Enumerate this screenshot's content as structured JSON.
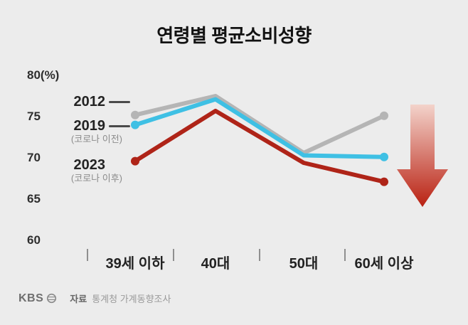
{
  "chart_data": {
    "type": "line",
    "title": "연령별 평균소비성향",
    "categories": [
      "39세 이하",
      "40대",
      "50대",
      "60세 이상"
    ],
    "yticks": [
      80,
      75,
      70,
      65,
      60
    ],
    "ylim": [
      60,
      80
    ],
    "y_unit": "(%)",
    "grid": false,
    "legend_position": "left-inline",
    "series": [
      {
        "name": "2012",
        "sub": "",
        "color": "#b5b5b5",
        "values": [
          75.2,
          77.5,
          70.6,
          75.1
        ]
      },
      {
        "name": "2019",
        "sub": "(코로나 이전)",
        "color": "#3fc0e4",
        "values": [
          74.0,
          77.1,
          70.3,
          70.1
        ]
      },
      {
        "name": "2023",
        "sub": "(코로나 이후)",
        "color": "#af2418",
        "values": [
          69.6,
          75.7,
          69.4,
          67.1
        ]
      }
    ],
    "annotations": [
      {
        "type": "down-arrow",
        "color_top": "#f3d3cb",
        "color_bottom": "#b92112"
      }
    ]
  },
  "footer": {
    "logo": "KBS",
    "source_label": "자료",
    "source_text": "통계청 가계동향조사"
  }
}
